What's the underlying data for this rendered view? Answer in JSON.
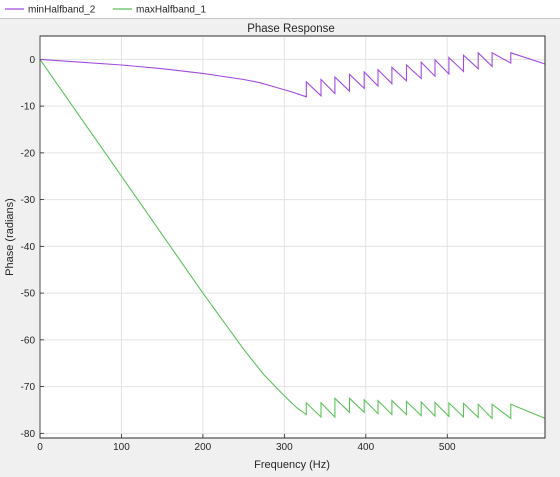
{
  "legend": {
    "entries": [
      {
        "name": "minHalfband_2",
        "color": "#a24be0"
      },
      {
        "name": "maxHalfband_1",
        "color": "#5cc25a"
      }
    ]
  },
  "chart_data": {
    "type": "line",
    "title": "Phase Response",
    "xlabel": "Frequency (Hz)",
    "ylabel": "Phase (radians)",
    "xlim": [
      0,
      620
    ],
    "ylim": [
      -81,
      5
    ],
    "xticks": [
      0,
      100,
      200,
      300,
      400,
      500
    ],
    "yticks": [
      0,
      -10,
      -20,
      -30,
      -40,
      -50,
      -60,
      -70,
      -80
    ],
    "grid": true,
    "legend_position": "top",
    "series": [
      {
        "name": "minHalfband_2",
        "color": "#a24be0",
        "points": [
          [
            0,
            0
          ],
          [
            50,
            -0.6
          ],
          [
            100,
            -1.2
          ],
          [
            150,
            -2.0
          ],
          [
            200,
            -3.0
          ],
          [
            250,
            -4.3
          ],
          [
            270,
            -5.0
          ],
          [
            290,
            -6.0
          ],
          [
            310,
            -7.0
          ],
          [
            327,
            -8.0
          ],
          [
            327,
            -4.8
          ],
          [
            345,
            -7.8
          ],
          [
            345,
            -4.3
          ],
          [
            362,
            -7.3
          ],
          [
            362,
            -3.8
          ],
          [
            380,
            -6.8
          ],
          [
            380,
            -3.2
          ],
          [
            398,
            -6.2
          ],
          [
            398,
            -2.7
          ],
          [
            415,
            -5.7
          ],
          [
            415,
            -2.2
          ],
          [
            432,
            -5.2
          ],
          [
            432,
            -1.7
          ],
          [
            450,
            -4.6
          ],
          [
            450,
            -1.2
          ],
          [
            468,
            -4.1
          ],
          [
            468,
            -0.6
          ],
          [
            485,
            -3.6
          ],
          [
            485,
            -0.1
          ],
          [
            502,
            -3.1
          ],
          [
            502,
            0.4
          ],
          [
            520,
            -2.6
          ],
          [
            520,
            0.9
          ],
          [
            538,
            -2.0
          ],
          [
            538,
            1.4
          ],
          [
            555,
            -1.5
          ],
          [
            555,
            1.4
          ],
          [
            578,
            -0.8
          ],
          [
            578,
            1.4
          ],
          [
            620,
            -1.0
          ]
        ]
      },
      {
        "name": "maxHalfband_1",
        "color": "#5cc25a",
        "points": [
          [
            0,
            0
          ],
          [
            50,
            -12.5
          ],
          [
            100,
            -25.0
          ],
          [
            150,
            -37.5
          ],
          [
            200,
            -50.0
          ],
          [
            250,
            -62.0
          ],
          [
            275,
            -67.5
          ],
          [
            300,
            -72.0
          ],
          [
            315,
            -74.5
          ],
          [
            327,
            -76.0
          ],
          [
            327,
            -73.5
          ],
          [
            345,
            -76.5
          ],
          [
            345,
            -73.5
          ],
          [
            362,
            -76.5
          ],
          [
            362,
            -72.5
          ],
          [
            380,
            -75.5
          ],
          [
            380,
            -72.5
          ],
          [
            398,
            -75.5
          ],
          [
            398,
            -72.8
          ],
          [
            415,
            -75.8
          ],
          [
            415,
            -73.0
          ],
          [
            432,
            -76.0
          ],
          [
            432,
            -73.0
          ],
          [
            450,
            -76.0
          ],
          [
            450,
            -73.2
          ],
          [
            468,
            -76.2
          ],
          [
            468,
            -73.3
          ],
          [
            485,
            -76.3
          ],
          [
            485,
            -73.4
          ],
          [
            502,
            -76.4
          ],
          [
            502,
            -73.5
          ],
          [
            520,
            -76.5
          ],
          [
            520,
            -73.6
          ],
          [
            538,
            -76.6
          ],
          [
            538,
            -73.8
          ],
          [
            555,
            -76.8
          ],
          [
            555,
            -73.8
          ],
          [
            578,
            -76.8
          ],
          [
            578,
            -73.8
          ],
          [
            620,
            -76.8
          ]
        ]
      }
    ]
  }
}
